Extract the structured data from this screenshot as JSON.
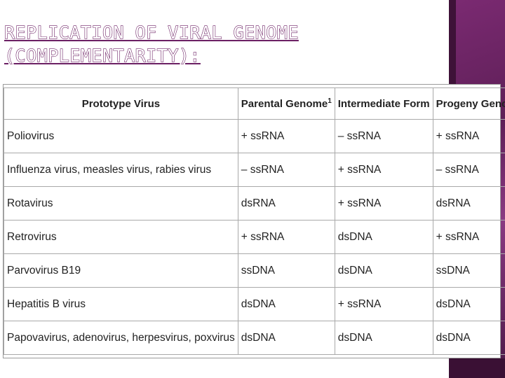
{
  "title": {
    "line1": "REPLICATION OF VIRAL GENOME",
    "line2": "(COMPLEMENTARITY):"
  },
  "table": {
    "headers": {
      "prototype_virus": "Prototype Virus",
      "parental_genome": "Parental Genome",
      "parental_genome_sup": "1",
      "intermediate_form": "Intermediate Form",
      "progeny_genome": "Progeny Genome"
    },
    "rows": [
      {
        "virus": "Poliovirus",
        "parental": "+ ssRNA",
        "intermediate": "– ssRNA",
        "progeny": "+ ssRNA"
      },
      {
        "virus": "Influenza virus, measles virus, rabies virus",
        "parental": "– ssRNA",
        "intermediate": "+ ssRNA",
        "progeny": "– ssRNA"
      },
      {
        "virus": "Rotavirus",
        "parental": "dsRNA",
        "intermediate": "+ ssRNA",
        "progeny": "dsRNA"
      },
      {
        "virus": "Retrovirus",
        "parental": "+ ssRNA",
        "intermediate": "dsDNA",
        "progeny": "+ ssRNA"
      },
      {
        "virus": "Parvovirus B19",
        "parental": "ssDNA",
        "intermediate": "dsDNA",
        "progeny": "ssDNA"
      },
      {
        "virus": "Hepatitis B virus",
        "parental": "dsDNA",
        "intermediate": "+ ssRNA",
        "progeny": "dsDNA"
      },
      {
        "virus": "Papovavirus, adenovirus, herpesvirus, poxvirus",
        "parental": "dsDNA",
        "intermediate": "dsDNA",
        "progeny": "dsDNA"
      }
    ]
  },
  "colors": {
    "accent": "#6b1f63",
    "band": "#7b2a72"
  }
}
